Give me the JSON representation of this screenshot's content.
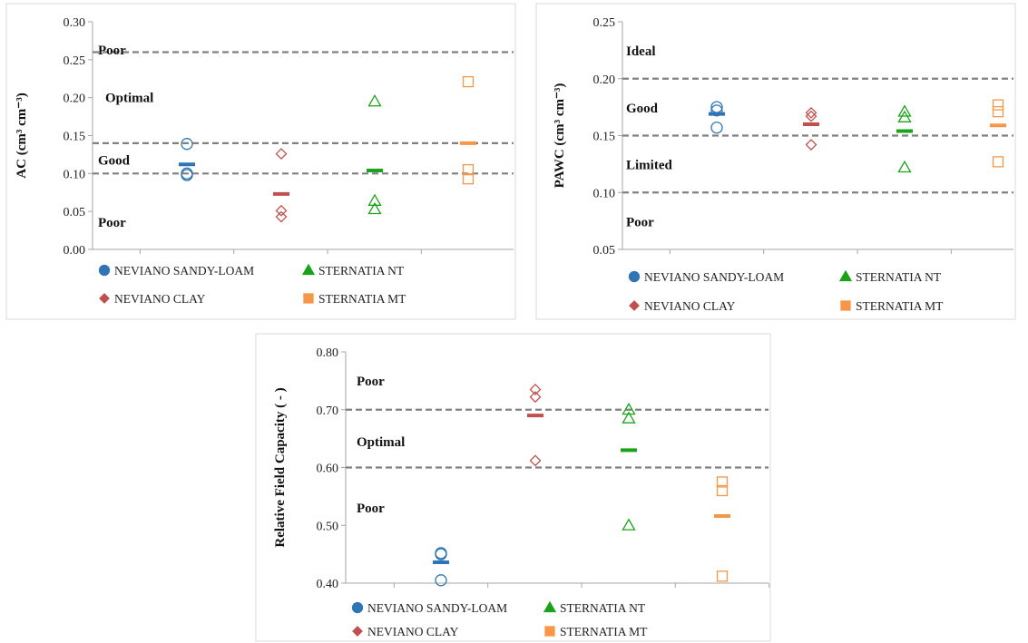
{
  "colors": {
    "neviano_sandy_loam": "#2e75b6",
    "neviano_clay": "#c0504d",
    "sternatia_nt": "#1aa31a",
    "sternatia_mt": "#f79646",
    "threshold": "#808080",
    "axis": "#a6a6a6"
  },
  "legend": [
    {
      "key": "neviano_sandy_loam",
      "label": "NEVIANO SANDY-LOAM",
      "symbol": "circle"
    },
    {
      "key": "sternatia_nt",
      "label": "STERNATIA NT",
      "symbol": "triangle"
    },
    {
      "key": "neviano_clay",
      "label": "NEVIANO CLAY",
      "symbol": "diamond"
    },
    {
      "key": "sternatia_mt",
      "label": "STERNATIA MT",
      "symbol": "square"
    }
  ],
  "chart_data": [
    {
      "type": "scatter",
      "id": "ac",
      "ylabel": "AC (cm³ cm⁻³)",
      "ylim": [
        0,
        0.3
      ],
      "yticks": [
        "0.00",
        "0.05",
        "0.10",
        "0.15",
        "0.20",
        "0.25",
        "0.30"
      ],
      "grid": false,
      "legend_position": "bottom",
      "categories": [
        "NEVIANO SANDY-LOAM",
        "NEVIANO CLAY",
        "STERNATIA NT",
        "STERNATIA MT"
      ],
      "thresholds": [
        0.26,
        0.14,
        0.1
      ],
      "zones": [
        {
          "label": "Poor",
          "y": 0.263
        },
        {
          "label": "Optimal",
          "y": 0.2
        },
        {
          "label": "Good",
          "y": 0.118
        },
        {
          "label": "Poor",
          "y": 0.036
        }
      ],
      "series": [
        {
          "name": "NEVIANO SANDY-LOAM",
          "key": "neviano_sandy_loam",
          "symbol": "circle",
          "values": [
            0.139,
            0.1,
            0.098
          ],
          "mean": 0.112
        },
        {
          "name": "NEVIANO CLAY",
          "key": "neviano_clay",
          "symbol": "diamond",
          "values": [
            0.126,
            0.051,
            0.043
          ],
          "mean": 0.073
        },
        {
          "name": "STERNATIA NT",
          "key": "sternatia_nt",
          "symbol": "triangle",
          "values": [
            0.195,
            0.064,
            0.053
          ],
          "mean": 0.104
        },
        {
          "name": "STERNATIA MT",
          "key": "sternatia_mt",
          "symbol": "square",
          "values": [
            0.221,
            0.105,
            0.093
          ],
          "mean": 0.14
        }
      ]
    },
    {
      "type": "scatter",
      "id": "pawc",
      "ylabel": "PAWC (cm³ cm⁻³)",
      "ylim": [
        0.05,
        0.25
      ],
      "yticks": [
        "0.05",
        "0.10",
        "0.15",
        "0.20",
        "0.25"
      ],
      "grid": false,
      "legend_position": "bottom",
      "categories": [
        "NEVIANO SANDY-LOAM",
        "NEVIANO CLAY",
        "STERNATIA NT",
        "STERNATIA MT"
      ],
      "thresholds": [
        0.2,
        0.15,
        0.1
      ],
      "zones": [
        {
          "label": "Ideal",
          "y": 0.2245
        },
        {
          "label": "Good",
          "y": 0.1745
        },
        {
          "label": "Limited",
          "y": 0.1245
        },
        {
          "label": "Poor",
          "y": 0.0745
        }
      ],
      "series": [
        {
          "name": "NEVIANO SANDY-LOAM",
          "key": "neviano_sandy_loam",
          "symbol": "circle",
          "values": [
            0.175,
            0.172,
            0.157
          ],
          "mean": 0.169
        },
        {
          "name": "NEVIANO CLAY",
          "key": "neviano_clay",
          "symbol": "diamond",
          "values": [
            0.17,
            0.167,
            0.142
          ],
          "mean": 0.16
        },
        {
          "name": "STERNATIA NT",
          "key": "sternatia_nt",
          "symbol": "triangle",
          "values": [
            0.171,
            0.166,
            0.122
          ],
          "mean": 0.154
        },
        {
          "name": "STERNATIA MT",
          "key": "sternatia_mt",
          "symbol": "square",
          "values": [
            0.177,
            0.171,
            0.127
          ],
          "mean": 0.159
        }
      ]
    },
    {
      "type": "scatter",
      "id": "rfc",
      "ylabel": "Relative Field Capacity ( - )",
      "ylim": [
        0.4,
        0.8
      ],
      "yticks": [
        "0.40",
        "0.50",
        "0.60",
        "0.70",
        "0.80"
      ],
      "grid": false,
      "legend_position": "bottom",
      "categories": [
        "NEVIANO SANDY-LOAM",
        "NEVIANO CLAY",
        "STERNATIA NT",
        "STERNATIA MT"
      ],
      "thresholds": [
        0.7,
        0.6
      ],
      "zones": [
        {
          "label": "Poor",
          "y": 0.75
        },
        {
          "label": "Optimal",
          "y": 0.645
        },
        {
          "label": "Poor",
          "y": 0.53
        }
      ],
      "series": [
        {
          "name": "NEVIANO SANDY-LOAM",
          "key": "neviano_sandy_loam",
          "symbol": "circle",
          "values": [
            0.452,
            0.45,
            0.405
          ],
          "mean": 0.436
        },
        {
          "name": "NEVIANO CLAY",
          "key": "neviano_clay",
          "symbol": "diamond",
          "values": [
            0.735,
            0.722,
            0.612
          ],
          "mean": 0.69
        },
        {
          "name": "STERNATIA NT",
          "key": "sternatia_nt",
          "symbol": "triangle",
          "values": [
            0.7,
            0.685,
            0.5
          ],
          "mean": 0.63
        },
        {
          "name": "STERNATIA MT",
          "key": "sternatia_mt",
          "symbol": "square",
          "values": [
            0.575,
            0.56,
            0.412
          ],
          "mean": 0.516
        }
      ]
    }
  ]
}
